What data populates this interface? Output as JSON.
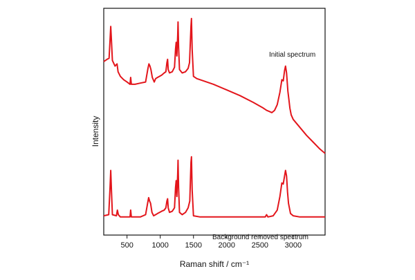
{
  "chart_data": {
    "type": "line",
    "title": "",
    "xlabel": "Raman shift / cm⁻¹",
    "ylabel": "Intensity",
    "xlim": [
      150,
      3480
    ],
    "ylim": [
      0,
      1
    ],
    "xticks": [
      500,
      1000,
      1500,
      2000,
      2500,
      3000
    ],
    "yticks_visible": false,
    "grid": false,
    "legend": "none",
    "line_color": "#e3151b",
    "series": [
      {
        "name": "Initial spectrum",
        "points": [
          [
            150,
            0.765
          ],
          [
            200,
            0.775
          ],
          [
            230,
            0.78
          ],
          [
            245,
            0.86
          ],
          [
            255,
            0.92
          ],
          [
            265,
            0.86
          ],
          [
            280,
            0.77
          ],
          [
            320,
            0.745
          ],
          [
            350,
            0.755
          ],
          [
            365,
            0.72
          ],
          [
            400,
            0.7
          ],
          [
            450,
            0.685
          ],
          [
            500,
            0.675
          ],
          [
            545,
            0.665
          ],
          [
            555,
            0.695
          ],
          [
            565,
            0.665
          ],
          [
            620,
            0.665
          ],
          [
            700,
            0.67
          ],
          [
            780,
            0.675
          ],
          [
            815,
            0.735
          ],
          [
            830,
            0.755
          ],
          [
            845,
            0.745
          ],
          [
            860,
            0.73
          ],
          [
            880,
            0.695
          ],
          [
            910,
            0.675
          ],
          [
            930,
            0.69
          ],
          [
            960,
            0.695
          ],
          [
            990,
            0.7
          ],
          [
            1020,
            0.705
          ],
          [
            1060,
            0.715
          ],
          [
            1085,
            0.72
          ],
          [
            1100,
            0.76
          ],
          [
            1110,
            0.775
          ],
          [
            1120,
            0.73
          ],
          [
            1140,
            0.715
          ],
          [
            1180,
            0.72
          ],
          [
            1215,
            0.74
          ],
          [
            1230,
            0.82
          ],
          [
            1240,
            0.85
          ],
          [
            1250,
            0.79
          ],
          [
            1262,
            0.88
          ],
          [
            1268,
            0.94
          ],
          [
            1276,
            0.83
          ],
          [
            1290,
            0.73
          ],
          [
            1330,
            0.715
          ],
          [
            1380,
            0.72
          ],
          [
            1420,
            0.735
          ],
          [
            1440,
            0.76
          ],
          [
            1462,
            0.92
          ],
          [
            1470,
            0.955
          ],
          [
            1480,
            0.82
          ],
          [
            1500,
            0.7
          ],
          [
            1550,
            0.69
          ],
          [
            1600,
            0.685
          ],
          [
            1800,
            0.665
          ],
          [
            2000,
            0.64
          ],
          [
            2200,
            0.615
          ],
          [
            2400,
            0.585
          ],
          [
            2550,
            0.56
          ],
          [
            2600,
            0.55
          ],
          [
            2640,
            0.545
          ],
          [
            2680,
            0.54
          ],
          [
            2720,
            0.55
          ],
          [
            2760,
            0.575
          ],
          [
            2800,
            0.63
          ],
          [
            2830,
            0.685
          ],
          [
            2850,
            0.68
          ],
          [
            2870,
            0.725
          ],
          [
            2885,
            0.745
          ],
          [
            2900,
            0.715
          ],
          [
            2920,
            0.635
          ],
          [
            2935,
            0.6
          ],
          [
            2950,
            0.56
          ],
          [
            2970,
            0.53
          ],
          [
            3000,
            0.51
          ],
          [
            3100,
            0.475
          ],
          [
            3200,
            0.44
          ],
          [
            3300,
            0.41
          ],
          [
            3400,
            0.38
          ],
          [
            3480,
            0.36
          ]
        ]
      },
      {
        "name": "Background removed spectrum",
        "points": [
          [
            150,
            0.085
          ],
          [
            225,
            0.09
          ],
          [
            245,
            0.21
          ],
          [
            255,
            0.285
          ],
          [
            265,
            0.2
          ],
          [
            280,
            0.09
          ],
          [
            340,
            0.085
          ],
          [
            355,
            0.11
          ],
          [
            370,
            0.09
          ],
          [
            400,
            0.08
          ],
          [
            500,
            0.08
          ],
          [
            545,
            0.08
          ],
          [
            555,
            0.11
          ],
          [
            565,
            0.08
          ],
          [
            620,
            0.08
          ],
          [
            700,
            0.08
          ],
          [
            780,
            0.09
          ],
          [
            810,
            0.14
          ],
          [
            825,
            0.165
          ],
          [
            840,
            0.15
          ],
          [
            855,
            0.14
          ],
          [
            875,
            0.1
          ],
          [
            900,
            0.085
          ],
          [
            930,
            0.09
          ],
          [
            960,
            0.095
          ],
          [
            990,
            0.1
          ],
          [
            1020,
            0.105
          ],
          [
            1060,
            0.11
          ],
          [
            1085,
            0.12
          ],
          [
            1100,
            0.15
          ],
          [
            1110,
            0.16
          ],
          [
            1120,
            0.12
          ],
          [
            1140,
            0.1
          ],
          [
            1180,
            0.105
          ],
          [
            1215,
            0.12
          ],
          [
            1230,
            0.21
          ],
          [
            1240,
            0.24
          ],
          [
            1250,
            0.17
          ],
          [
            1262,
            0.27
          ],
          [
            1268,
            0.33
          ],
          [
            1276,
            0.21
          ],
          [
            1290,
            0.1
          ],
          [
            1330,
            0.09
          ],
          [
            1380,
            0.1
          ],
          [
            1420,
            0.12
          ],
          [
            1445,
            0.15
          ],
          [
            1462,
            0.32
          ],
          [
            1470,
            0.345
          ],
          [
            1480,
            0.2
          ],
          [
            1500,
            0.085
          ],
          [
            1600,
            0.08
          ],
          [
            2000,
            0.08
          ],
          [
            2400,
            0.08
          ],
          [
            2580,
            0.08
          ],
          [
            2600,
            0.09
          ],
          [
            2620,
            0.08
          ],
          [
            2700,
            0.085
          ],
          [
            2760,
            0.11
          ],
          [
            2800,
            0.17
          ],
          [
            2830,
            0.23
          ],
          [
            2850,
            0.225
          ],
          [
            2870,
            0.26
          ],
          [
            2885,
            0.285
          ],
          [
            2900,
            0.26
          ],
          [
            2915,
            0.19
          ],
          [
            2930,
            0.14
          ],
          [
            2960,
            0.095
          ],
          [
            3000,
            0.085
          ],
          [
            3100,
            0.08
          ],
          [
            3480,
            0.08
          ]
        ]
      }
    ],
    "annotations": [
      {
        "text": "Initial spectrum",
        "series": 0
      },
      {
        "text": "Background removed spectrum",
        "series": 1
      }
    ]
  }
}
